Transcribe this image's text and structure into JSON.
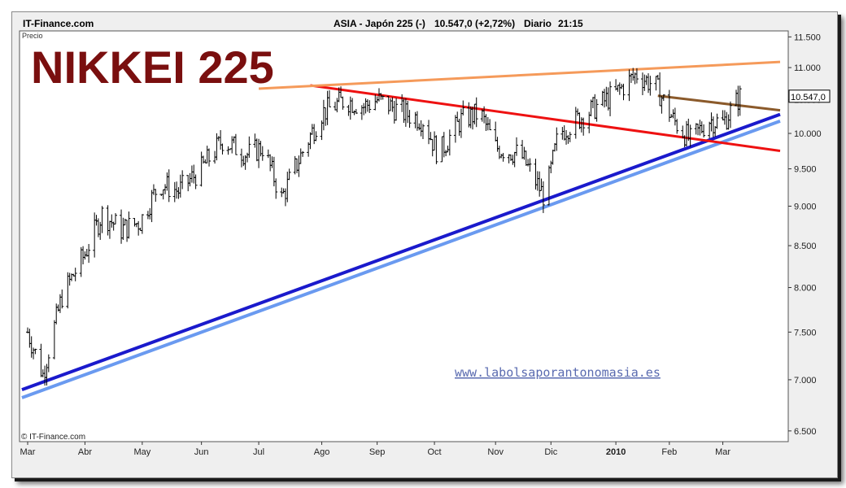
{
  "header": {
    "source": "IT-Finance.com",
    "instrument": "ASIA - Japón 225 (-)",
    "quote": "10.547,0 (+2,72%)",
    "period": "Diario",
    "time": "21:15"
  },
  "panel_label": "Precio",
  "big_title": "NIKKEI 225",
  "watermark": "www.labolsaporantonomasia.es",
  "footer_credit": "© IT-Finance.com",
  "last_price_label": "10.547,0",
  "colors": {
    "bars": "#000000",
    "title": "#7a0f0f",
    "support_dark": "#1a1acc",
    "support_light": "#6a9af0",
    "resistance_red": "#ee1111",
    "upper_orange": "#f59a5a",
    "short_brown": "#8b5a2b",
    "watermark": "#5a6bb0"
  },
  "chart_data": {
    "type": "ohlc",
    "title": "NIKKEI 225",
    "ylabel": "Precio",
    "ylim": [
      6400,
      11600
    ],
    "y_scale": "log",
    "y_ticks": [
      "6.500",
      "7.000",
      "7.500",
      "8.000",
      "8.500",
      "9.000",
      "9.500",
      "10.000",
      "10.500",
      "11.000",
      "11.500"
    ],
    "x_range": [
      "2009-03-02",
      "2010-03-31"
    ],
    "x_ticks": [
      {
        "date": "2009-03-02",
        "label": "Mar"
      },
      {
        "date": "2009-04-01",
        "label": "Abr"
      },
      {
        "date": "2009-05-01",
        "label": "May"
      },
      {
        "date": "2009-06-01",
        "label": "Jun"
      },
      {
        "date": "2009-07-01",
        "label": "Jul"
      },
      {
        "date": "2009-08-03",
        "label": "Ago"
      },
      {
        "date": "2009-09-01",
        "label": "Sep"
      },
      {
        "date": "2009-10-01",
        "label": "Oct"
      },
      {
        "date": "2009-11-02",
        "label": "Nov"
      },
      {
        "date": "2009-12-01",
        "label": "Dic"
      },
      {
        "date": "2010-01-04",
        "label": "2010"
      },
      {
        "date": "2010-02-01",
        "label": "Feb"
      },
      {
        "date": "2010-03-01",
        "label": "Mar"
      }
    ],
    "series": [
      {
        "name": "Japón 225",
        "points": [
          {
            "date": "2009-03-02",
            "close": 7500
          },
          {
            "date": "2009-03-10",
            "close": 7050
          },
          {
            "date": "2009-03-20",
            "close": 7900
          },
          {
            "date": "2009-04-01",
            "close": 8400
          },
          {
            "date": "2009-04-10",
            "close": 8900
          },
          {
            "date": "2009-04-20",
            "close": 8700
          },
          {
            "date": "2009-04-30",
            "close": 8800
          },
          {
            "date": "2009-05-10",
            "close": 9300
          },
          {
            "date": "2009-05-20",
            "close": 9200
          },
          {
            "date": "2009-06-01",
            "close": 9500
          },
          {
            "date": "2009-06-12",
            "close": 9900
          },
          {
            "date": "2009-06-25",
            "close": 9700
          },
          {
            "date": "2009-07-03",
            "close": 9800
          },
          {
            "date": "2009-07-13",
            "close": 9100
          },
          {
            "date": "2009-07-25",
            "close": 9800
          },
          {
            "date": "2009-08-03",
            "close": 10300
          },
          {
            "date": "2009-08-15",
            "close": 10500
          },
          {
            "date": "2009-08-25",
            "close": 10400
          },
          {
            "date": "2009-09-01",
            "close": 10500
          },
          {
            "date": "2009-09-15",
            "close": 10300
          },
          {
            "date": "2009-09-25",
            "close": 10200
          },
          {
            "date": "2009-10-03",
            "close": 9700
          },
          {
            "date": "2009-10-15",
            "close": 10200
          },
          {
            "date": "2009-10-25",
            "close": 10300
          },
          {
            "date": "2009-11-02",
            "close": 9800
          },
          {
            "date": "2009-11-15",
            "close": 9700
          },
          {
            "date": "2009-11-28",
            "close": 9100
          },
          {
            "date": "2009-12-05",
            "close": 10000
          },
          {
            "date": "2009-12-15",
            "close": 10200
          },
          {
            "date": "2009-12-25",
            "close": 10400
          },
          {
            "date": "2010-01-04",
            "close": 10600
          },
          {
            "date": "2010-01-15",
            "close": 10900
          },
          {
            "date": "2010-01-25",
            "close": 10700
          },
          {
            "date": "2010-02-03",
            "close": 10200
          },
          {
            "date": "2010-02-12",
            "close": 9900
          },
          {
            "date": "2010-02-22",
            "close": 10200
          },
          {
            "date": "2010-03-01",
            "close": 10150
          },
          {
            "date": "2010-03-10",
            "close": 10547
          }
        ]
      }
    ],
    "trendlines": [
      {
        "name": "support_dark",
        "color": "#1a1acc",
        "from": {
          "date": "2009-02-27",
          "value": 6900
        },
        "to": {
          "date": "2010-03-31",
          "value": 10280
        }
      },
      {
        "name": "support_light",
        "color": "#6a9af0",
        "from": {
          "date": "2009-02-27",
          "value": 6820
        },
        "to": {
          "date": "2010-03-31",
          "value": 10180
        }
      },
      {
        "name": "resistance_red",
        "color": "#ee1111",
        "from": {
          "date": "2009-07-28",
          "value": 10720
        },
        "to": {
          "date": "2010-03-31",
          "value": 9750
        }
      },
      {
        "name": "upper_orange",
        "color": "#f59a5a",
        "from": {
          "date": "2009-07-01",
          "value": 10670
        },
        "to": {
          "date": "2010-03-31",
          "value": 11090
        }
      },
      {
        "name": "short_brown",
        "color": "#8b5a2b",
        "from": {
          "date": "2010-01-26",
          "value": 10560
        },
        "to": {
          "date": "2010-03-31",
          "value": 10340
        }
      }
    ],
    "grid": false,
    "legend": "none"
  }
}
